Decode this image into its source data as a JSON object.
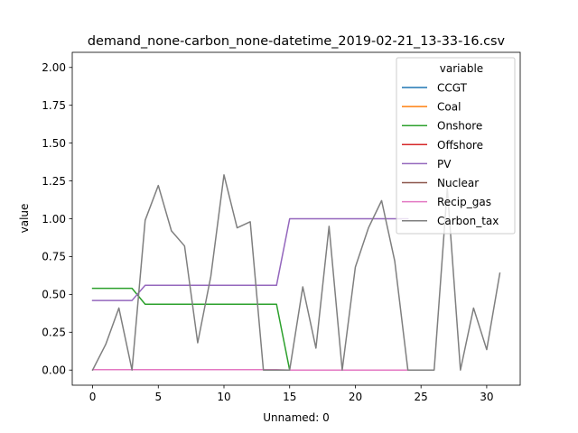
{
  "chart_data": {
    "type": "line",
    "title": "demand_none-carbon_none-datetime_2019-02-21_13-33-16.csv",
    "xlabel": "Unnamed: 0",
    "ylabel": "value",
    "xlim": [
      -1.55,
      32.55
    ],
    "ylim": [
      -0.1,
      2.1
    ],
    "xticks": [
      0,
      5,
      10,
      15,
      20,
      25,
      30
    ],
    "yticks": [
      0.0,
      0.25,
      0.5,
      0.75,
      1.0,
      1.25,
      1.5,
      1.75,
      2.0
    ],
    "ytick_labels": [
      "0.00",
      "0.25",
      "0.50",
      "0.75",
      "1.00",
      "1.25",
      "1.50",
      "1.75",
      "2.00"
    ],
    "grid": false,
    "legend": {
      "title": "variable",
      "position": "top-right"
    },
    "series": [
      {
        "name": "CCGT",
        "color": "#1f77b4",
        "x": [],
        "values": []
      },
      {
        "name": "Coal",
        "color": "#ff7f0e",
        "x": [],
        "values": []
      },
      {
        "name": "Onshore",
        "color": "#2ca02c",
        "x": [
          0,
          1,
          2,
          3,
          4,
          5,
          6,
          7,
          8,
          9,
          10,
          11,
          12,
          13,
          14,
          15
        ],
        "values": [
          0.54,
          0.54,
          0.54,
          0.54,
          0.435,
          0.435,
          0.435,
          0.435,
          0.435,
          0.435,
          0.435,
          0.435,
          0.435,
          0.435,
          0.435,
          0.0
        ]
      },
      {
        "name": "Offshore",
        "color": "#d62728",
        "x": [],
        "values": []
      },
      {
        "name": "PV",
        "color": "#9467bd",
        "x": [
          0,
          1,
          2,
          3,
          4,
          5,
          6,
          7,
          8,
          9,
          10,
          11,
          12,
          13,
          14,
          15,
          16,
          17,
          18,
          19,
          20,
          21,
          22,
          23,
          24
        ],
        "values": [
          0.46,
          0.46,
          0.46,
          0.46,
          0.56,
          0.56,
          0.56,
          0.56,
          0.56,
          0.56,
          0.56,
          0.56,
          0.56,
          0.56,
          0.56,
          1.0,
          1.0,
          1.0,
          1.0,
          1.0,
          1.0,
          1.0,
          1.0,
          1.0,
          1.0
        ]
      },
      {
        "name": "Nuclear",
        "color": "#8c564b",
        "x": [],
        "values": []
      },
      {
        "name": "Recip_gas",
        "color": "#e377c2",
        "x": [
          0,
          1,
          2,
          3,
          4,
          5,
          6,
          7,
          8,
          9,
          10,
          11,
          12,
          13,
          14,
          15,
          16,
          17,
          18,
          19,
          20,
          21,
          22,
          23,
          24
        ],
        "values": [
          0.003,
          0.003,
          0.003,
          0.003,
          0.003,
          0.003,
          0.003,
          0.003,
          0.003,
          0.003,
          0.003,
          0.003,
          0.003,
          0.003,
          0.003,
          0.0,
          0.0,
          0.0,
          0.0,
          0.0,
          0.0,
          0.0,
          0.0,
          0.0,
          0.0
        ]
      },
      {
        "name": "Carbon_tax",
        "color": "#7f7f7f",
        "x": [
          0,
          1,
          2,
          3,
          4,
          5,
          6,
          7,
          8,
          9,
          10,
          11,
          12,
          13,
          14,
          15,
          16,
          17,
          18,
          19,
          20,
          21,
          22,
          23,
          24,
          25,
          26,
          27,
          28,
          29,
          30,
          31
        ],
        "values": [
          0.0,
          0.17,
          0.41,
          0.0,
          0.99,
          1.22,
          0.92,
          0.82,
          0.18,
          0.62,
          1.29,
          0.94,
          0.98,
          0.0,
          0.0,
          0.0,
          0.55,
          0.145,
          0.95,
          0.0,
          0.68,
          0.94,
          1.12,
          0.72,
          0.0,
          0.0,
          0.0,
          1.2,
          0.0,
          0.41,
          0.135,
          0.64
        ]
      }
    ]
  }
}
